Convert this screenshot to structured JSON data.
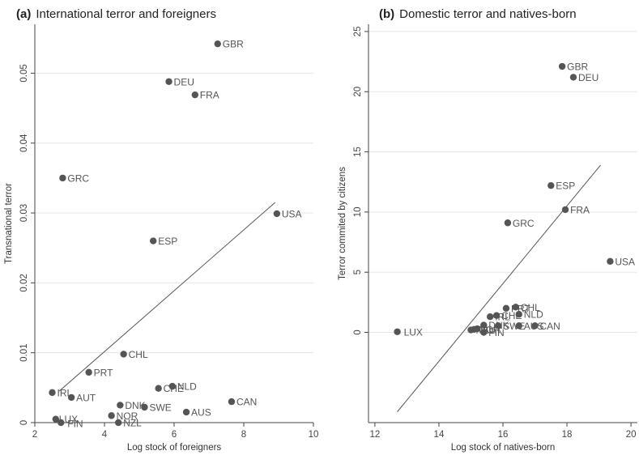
{
  "chart_data": [
    {
      "type": "scatter",
      "title_tag": "(a)",
      "title": "International terror and foreigners",
      "xlabel": "Log stock of foreigners",
      "ylabel": "Transnational terror",
      "xlim": [
        2,
        10
      ],
      "ylim": [
        0,
        0.057
      ],
      "xticks": [
        2,
        4,
        6,
        8,
        10
      ],
      "yticks": [
        0,
        0.01,
        0.02,
        0.03,
        0.04,
        0.05
      ],
      "ytick_labels": [
        "0",
        "0.01",
        "0.02",
        "0.03",
        "0.04",
        "0.05"
      ],
      "grid": "horizontal",
      "point_color": "#555555",
      "line_color": "#555555",
      "fit_line": {
        "x": [
          2.7,
          8.9
        ],
        "y": [
          0.0045,
          0.0315
        ]
      },
      "points": [
        {
          "label": "GBR",
          "x": 7.25,
          "y": 0.0542
        },
        {
          "label": "DEU",
          "x": 5.85,
          "y": 0.0488
        },
        {
          "label": "FRA",
          "x": 6.6,
          "y": 0.0469
        },
        {
          "label": "GRC",
          "x": 2.8,
          "y": 0.035
        },
        {
          "label": "USA",
          "x": 8.95,
          "y": 0.0299
        },
        {
          "label": "ESP",
          "x": 5.4,
          "y": 0.026
        },
        {
          "label": "CHL",
          "x": 4.55,
          "y": 0.0098
        },
        {
          "label": "PRT",
          "x": 3.55,
          "y": 0.0072
        },
        {
          "label": "CHE",
          "x": 5.55,
          "y": 0.0049
        },
        {
          "label": "NLD",
          "x": 5.95,
          "y": 0.0052
        },
        {
          "label": "IRL",
          "x": 2.5,
          "y": 0.0043
        },
        {
          "label": "AUT",
          "x": 3.05,
          "y": 0.0036
        },
        {
          "label": "CAN",
          "x": 7.65,
          "y": 0.003
        },
        {
          "label": "DNK",
          "x": 4.45,
          "y": 0.0025
        },
        {
          "label": "SWE",
          "x": 5.15,
          "y": 0.0022
        },
        {
          "label": "AUS",
          "x": 6.35,
          "y": 0.0015
        },
        {
          "label": "NOR",
          "x": 4.2,
          "y": 0.001
        },
        {
          "label": "LUX",
          "x": 2.6,
          "y": 0.0005
        },
        {
          "label": "FIN",
          "x": 2.75,
          "y": 0.0
        },
        {
          "label": "NZL",
          "x": 4.4,
          "y": 0.0
        }
      ]
    },
    {
      "type": "scatter",
      "title_tag": "(b)",
      "title": "Domestic terror and natives-born",
      "xlabel": "Log stock of natives-born",
      "ylabel": "Terror commited by citizens",
      "xlim": [
        11.8,
        20.2
      ],
      "ylim": [
        -7.5,
        25.6
      ],
      "xticks": [
        12,
        14,
        16,
        18,
        20
      ],
      "yticks": [
        0,
        5,
        10,
        15,
        20,
        25
      ],
      "ytick_labels": [
        "0",
        "5",
        "10",
        "15",
        "20",
        "25"
      ],
      "grid": "horizontal",
      "point_color": "#555555",
      "line_color": "#555555",
      "fit_line": {
        "x": [
          12.7,
          19.05
        ],
        "y": [
          -6.6,
          13.9
        ]
      },
      "points": [
        {
          "label": "GBR",
          "x": 17.85,
          "y": 22.1
        },
        {
          "label": "DEU",
          "x": 18.2,
          "y": 21.2
        },
        {
          "label": "ESP",
          "x": 17.5,
          "y": 12.2
        },
        {
          "label": "FRA",
          "x": 17.95,
          "y": 10.2
        },
        {
          "label": "GRC",
          "x": 16.15,
          "y": 9.1
        },
        {
          "label": "USA",
          "x": 19.35,
          "y": 5.9
        },
        {
          "label": "LUX",
          "x": 12.7,
          "y": 0.05
        },
        {
          "label": "PRT",
          "x": 16.1,
          "y": 2.0
        },
        {
          "label": "CHL",
          "x": 16.4,
          "y": 2.1
        },
        {
          "label": "NLD",
          "x": 16.5,
          "y": 1.5
        },
        {
          "label": "CHE",
          "x": 15.8,
          "y": 1.4
        },
        {
          "label": "IRL",
          "x": 15.6,
          "y": 1.3
        },
        {
          "label": "DNK",
          "x": 15.4,
          "y": 0.6
        },
        {
          "label": "SWE",
          "x": 15.85,
          "y": 0.55
        },
        {
          "label": "AUS",
          "x": 16.5,
          "y": 0.55
        },
        {
          "label": "CAN",
          "x": 17.0,
          "y": 0.55
        },
        {
          "label": "AUT",
          "x": 15.2,
          "y": 0.3
        },
        {
          "label": "NOR",
          "x": 15.1,
          "y": 0.25
        },
        {
          "label": "NZL",
          "x": 15.0,
          "y": 0.2
        },
        {
          "label": "FIN",
          "x": 15.4,
          "y": 0.0
        }
      ]
    }
  ]
}
